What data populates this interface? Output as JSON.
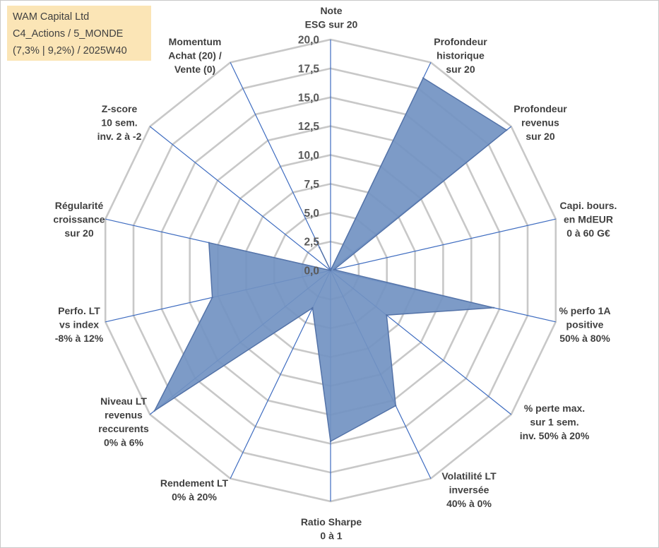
{
  "header": {
    "line1": "WAM Capital Ltd",
    "line2": "C4_Actions / 5_MONDE",
    "line3": "(7,3% | 9,2%) / 2025W40",
    "background": "#fbe5b6"
  },
  "chart_data": {
    "type": "radar",
    "rmin": 0,
    "rmax": 20,
    "tick_values": [
      0,
      2.5,
      5,
      7.5,
      10,
      12.5,
      15,
      17.5,
      20
    ],
    "tick_labels": [
      "0,0",
      "2,5",
      "5,0",
      "7,5",
      "10,0",
      "12,5",
      "15,0",
      "17,5",
      "20,0"
    ],
    "axes": [
      {
        "lines": [
          "Note",
          "ESG sur 20"
        ]
      },
      {
        "lines": [
          "Profondeur",
          "historique",
          "sur 20"
        ]
      },
      {
        "lines": [
          "Profondeur",
          "revenus",
          "sur 20"
        ]
      },
      {
        "lines": [
          "Capi. bours.",
          "en MdEUR",
          "0 à 60 G€"
        ]
      },
      {
        "lines": [
          "% perfo 1A",
          "positive",
          "50% à 80%"
        ]
      },
      {
        "lines": [
          "% perte max.",
          "sur 1 sem.",
          "inv. 50% à 20%"
        ]
      },
      {
        "lines": [
          "Volatilité LT",
          "inversée",
          "40% à 0%"
        ]
      },
      {
        "lines": [
          "Ratio Sharpe",
          "0 à 1"
        ]
      },
      {
        "lines": [
          "Rendement LT",
          "0% à 20%"
        ]
      },
      {
        "lines": [
          "Niveau LT",
          "revenus",
          "reccurents",
          "0% à 6%"
        ]
      },
      {
        "lines": [
          "Perfo. LT",
          "vs index",
          "-8% à 12%"
        ]
      },
      {
        "lines": [
          "Régularité",
          "croissance",
          "sur 20"
        ]
      },
      {
        "lines": [
          "Z-score",
          "10 sem.",
          "inv. 2 à -2"
        ]
      },
      {
        "lines": [
          "Momentum",
          "Achat (20) /",
          "Vente (0)"
        ]
      }
    ],
    "series": [
      {
        "values": [
          0,
          18.5,
          19.5,
          0.3,
          14.5,
          6.2,
          13,
          14.8,
          3.6,
          19.5,
          10.5,
          10.8,
          0,
          2.2
        ]
      }
    ],
    "colors": {
      "fill": "#7292c2",
      "fill_opacity": 0.92,
      "stroke": "#5473a8",
      "spoke": "#3e6cc0",
      "grid": "#c8c8c8"
    },
    "grid": true
  }
}
